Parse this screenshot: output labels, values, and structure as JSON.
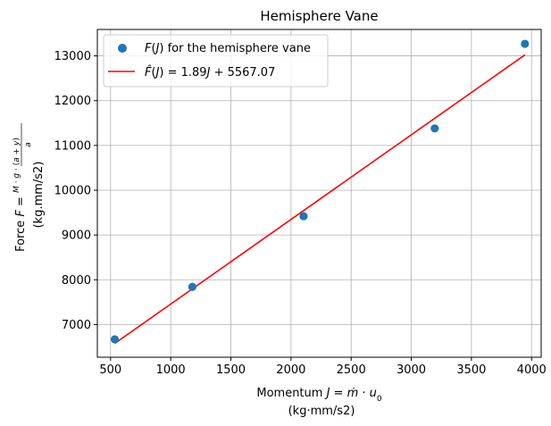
{
  "chart_data": {
    "type": "scatter",
    "title": "Hemisphere Vane",
    "xlabel_line1": "Momentum J = ṁ · u₀",
    "xlabel_line2": "(kg·mm/s2)",
    "ylabel_line1": "Force F = M·g·(a+y) / a",
    "ylabel_line2": "(kg.mm/s2)",
    "xlim": [
      390,
      4080
    ],
    "ylim": [
      6270,
      13590
    ],
    "xticks": [
      500,
      1000,
      1500,
      2000,
      2500,
      3000,
      3500,
      4000
    ],
    "yticks": [
      7000,
      8000,
      9000,
      10000,
      11000,
      12000,
      13000
    ],
    "grid": true,
    "legend_position": "upper-left",
    "series": [
      {
        "name": "F(J) for the hemisphere vane",
        "kind": "scatter",
        "color": "#1f77b4",
        "x": [
          535,
          1180,
          2105,
          3195,
          3945
        ],
        "y": [
          6670,
          7840,
          9420,
          11380,
          13270
        ]
      },
      {
        "name": "F̂(J) = 1.89J + 5567.07",
        "kind": "line",
        "color": "#ff0000",
        "slope": 1.89,
        "intercept": 5567.07,
        "x_range": [
          535,
          3945
        ]
      }
    ]
  }
}
